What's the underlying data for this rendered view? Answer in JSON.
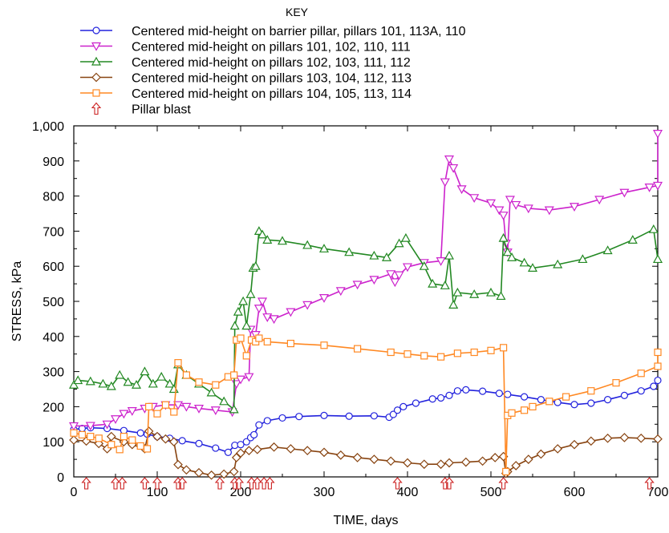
{
  "chart_data": {
    "type": "line",
    "title": "",
    "xlabel": "TIME, days",
    "ylabel": "STRESS, kPa",
    "xlim": [
      0,
      700
    ],
    "ylim": [
      0,
      1000
    ],
    "x_ticks": [
      0,
      100,
      200,
      300,
      400,
      500,
      600,
      700
    ],
    "x_tick_labels": [
      "0",
      "100",
      "200",
      "300",
      "400",
      "500",
      "600",
      "700"
    ],
    "y_ticks": [
      0,
      100,
      200,
      300,
      400,
      500,
      600,
      700,
      800,
      900,
      1000
    ],
    "y_tick_labels": [
      "0",
      "100",
      "200",
      "300",
      "400",
      "500",
      "600",
      "700",
      "800",
      "900",
      "1,000"
    ],
    "grid": false,
    "legend": {
      "title": "KEY",
      "placement": "top",
      "blast_label": "Pillar blast"
    },
    "series": [
      {
        "name": "Centered mid-height on barrier pillar, pillars 101, 113A, 110",
        "color": "#2222dd",
        "marker": "circle",
        "points": [
          [
            0,
            135
          ],
          [
            10,
            138
          ],
          [
            20,
            140
          ],
          [
            40,
            138
          ],
          [
            60,
            132
          ],
          [
            80,
            125
          ],
          [
            88,
            122
          ],
          [
            100,
            115
          ],
          [
            115,
            110
          ],
          [
            130,
            103
          ],
          [
            150,
            95
          ],
          [
            170,
            82
          ],
          [
            185,
            70
          ],
          [
            193,
            90
          ],
          [
            200,
            92
          ],
          [
            207,
            100
          ],
          [
            212,
            112
          ],
          [
            216,
            120
          ],
          [
            222,
            148
          ],
          [
            232,
            160
          ],
          [
            250,
            168
          ],
          [
            270,
            172
          ],
          [
            300,
            175
          ],
          [
            330,
            173
          ],
          [
            360,
            174
          ],
          [
            378,
            170
          ],
          [
            383,
            178
          ],
          [
            388,
            190
          ],
          [
            395,
            200
          ],
          [
            410,
            210
          ],
          [
            430,
            222
          ],
          [
            440,
            225
          ],
          [
            450,
            232
          ],
          [
            460,
            245
          ],
          [
            470,
            248
          ],
          [
            490,
            244
          ],
          [
            510,
            238
          ],
          [
            520,
            235
          ],
          [
            540,
            228
          ],
          [
            560,
            220
          ],
          [
            580,
            212
          ],
          [
            600,
            206
          ],
          [
            620,
            210
          ],
          [
            640,
            220
          ],
          [
            660,
            232
          ],
          [
            680,
            245
          ],
          [
            695,
            258
          ],
          [
            700,
            275
          ]
        ]
      },
      {
        "name": "Centered mid-height on pillars 101, 102, 110, 111",
        "color": "#cc22cc",
        "marker": "triangle-down",
        "points": [
          [
            0,
            145
          ],
          [
            20,
            146
          ],
          [
            40,
            150
          ],
          [
            50,
            165
          ],
          [
            60,
            180
          ],
          [
            70,
            188
          ],
          [
            85,
            195
          ],
          [
            95,
            200
          ],
          [
            110,
            205
          ],
          [
            125,
            205
          ],
          [
            135,
            200
          ],
          [
            150,
            195
          ],
          [
            170,
            190
          ],
          [
            190,
            185
          ],
          [
            195,
            265
          ],
          [
            200,
            278
          ],
          [
            210,
            285
          ],
          [
            212,
            420
          ],
          [
            218,
            405
          ],
          [
            222,
            480
          ],
          [
            226,
            500
          ],
          [
            232,
            455
          ],
          [
            240,
            450
          ],
          [
            260,
            470
          ],
          [
            280,
            490
          ],
          [
            300,
            510
          ],
          [
            320,
            530
          ],
          [
            340,
            548
          ],
          [
            360,
            562
          ],
          [
            380,
            578
          ],
          [
            385,
            555
          ],
          [
            390,
            575
          ],
          [
            400,
            598
          ],
          [
            420,
            610
          ],
          [
            440,
            615
          ],
          [
            445,
            840
          ],
          [
            450,
            905
          ],
          [
            455,
            880
          ],
          [
            465,
            820
          ],
          [
            480,
            795
          ],
          [
            500,
            780
          ],
          [
            510,
            760
          ],
          [
            515,
            745
          ],
          [
            518,
            665
          ],
          [
            520,
            640
          ],
          [
            523,
            790
          ],
          [
            530,
            775
          ],
          [
            545,
            765
          ],
          [
            570,
            760
          ],
          [
            600,
            770
          ],
          [
            630,
            790
          ],
          [
            660,
            810
          ],
          [
            690,
            825
          ],
          [
            700,
            830
          ],
          [
            700,
            978
          ]
        ]
      },
      {
        "name": "Centered mid-height on pillars 102, 103, 111, 112",
        "color": "#228822",
        "marker": "triangle-up",
        "points": [
          [
            0,
            262
          ],
          [
            5,
            275
          ],
          [
            20,
            272
          ],
          [
            35,
            265
          ],
          [
            45,
            258
          ],
          [
            55,
            290
          ],
          [
            65,
            270
          ],
          [
            75,
            262
          ],
          [
            85,
            300
          ],
          [
            95,
            265
          ],
          [
            105,
            285
          ],
          [
            115,
            265
          ],
          [
            120,
            250
          ],
          [
            125,
            320
          ],
          [
            135,
            290
          ],
          [
            150,
            265
          ],
          [
            165,
            240
          ],
          [
            180,
            215
          ],
          [
            192,
            192
          ],
          [
            193,
            430
          ],
          [
            197,
            470
          ],
          [
            203,
            500
          ],
          [
            207,
            430
          ],
          [
            212,
            520
          ],
          [
            215,
            595
          ],
          [
            218,
            600
          ],
          [
            222,
            700
          ],
          [
            226,
            690
          ],
          [
            232,
            675
          ],
          [
            250,
            672
          ],
          [
            280,
            660
          ],
          [
            300,
            650
          ],
          [
            330,
            640
          ],
          [
            360,
            630
          ],
          [
            375,
            625
          ],
          [
            390,
            665
          ],
          [
            398,
            680
          ],
          [
            420,
            600
          ],
          [
            430,
            550
          ],
          [
            445,
            545
          ],
          [
            450,
            630
          ],
          [
            455,
            490
          ],
          [
            460,
            525
          ],
          [
            480,
            520
          ],
          [
            500,
            525
          ],
          [
            512,
            515
          ],
          [
            515,
            680
          ],
          [
            520,
            640
          ],
          [
            525,
            625
          ],
          [
            540,
            610
          ],
          [
            550,
            595
          ],
          [
            580,
            605
          ],
          [
            610,
            620
          ],
          [
            640,
            645
          ],
          [
            670,
            675
          ],
          [
            695,
            705
          ],
          [
            700,
            620
          ]
        ]
      },
      {
        "name": "Centered mid-height on pillars 103, 104, 112, 113",
        "color": "#884411",
        "marker": "diamond",
        "points": [
          [
            0,
            105
          ],
          [
            15,
            102
          ],
          [
            30,
            95
          ],
          [
            40,
            80
          ],
          [
            45,
            115
          ],
          [
            60,
            100
          ],
          [
            70,
            92
          ],
          [
            85,
            80
          ],
          [
            90,
            130
          ],
          [
            100,
            115
          ],
          [
            110,
            108
          ],
          [
            120,
            100
          ],
          [
            125,
            35
          ],
          [
            135,
            20
          ],
          [
            150,
            12
          ],
          [
            165,
            5
          ],
          [
            180,
            8
          ],
          [
            192,
            15
          ],
          [
            195,
            55
          ],
          [
            200,
            68
          ],
          [
            210,
            75
          ],
          [
            220,
            78
          ],
          [
            240,
            85
          ],
          [
            260,
            80
          ],
          [
            280,
            75
          ],
          [
            300,
            70
          ],
          [
            320,
            62
          ],
          [
            340,
            55
          ],
          [
            360,
            50
          ],
          [
            380,
            45
          ],
          [
            400,
            40
          ],
          [
            420,
            36
          ],
          [
            440,
            36
          ],
          [
            450,
            40
          ],
          [
            470,
            42
          ],
          [
            490,
            45
          ],
          [
            505,
            55
          ],
          [
            515,
            58
          ],
          [
            518,
            10
          ],
          [
            520,
            15
          ],
          [
            530,
            32
          ],
          [
            545,
            50
          ],
          [
            560,
            65
          ],
          [
            580,
            80
          ],
          [
            600,
            92
          ],
          [
            620,
            102
          ],
          [
            640,
            110
          ],
          [
            660,
            112
          ],
          [
            680,
            110
          ],
          [
            700,
            108
          ]
        ]
      },
      {
        "name": "Centered mid-height on pillars 104, 105, 113, 114",
        "color": "#ff8822",
        "marker": "square",
        "points": [
          [
            0,
            125
          ],
          [
            10,
            120
          ],
          [
            20,
            115
          ],
          [
            30,
            110
          ],
          [
            45,
            92
          ],
          [
            55,
            78
          ],
          [
            60,
            115
          ],
          [
            70,
            105
          ],
          [
            80,
            88
          ],
          [
            88,
            80
          ],
          [
            90,
            200
          ],
          [
            100,
            180
          ],
          [
            110,
            205
          ],
          [
            120,
            185
          ],
          [
            125,
            325
          ],
          [
            135,
            290
          ],
          [
            150,
            270
          ],
          [
            170,
            262
          ],
          [
            185,
            285
          ],
          [
            192,
            290
          ],
          [
            195,
            390
          ],
          [
            200,
            395
          ],
          [
            207,
            345
          ],
          [
            213,
            390
          ],
          [
            218,
            385
          ],
          [
            222,
            395
          ],
          [
            232,
            385
          ],
          [
            260,
            380
          ],
          [
            300,
            375
          ],
          [
            340,
            365
          ],
          [
            380,
            355
          ],
          [
            400,
            350
          ],
          [
            420,
            345
          ],
          [
            440,
            342
          ],
          [
            460,
            352
          ],
          [
            480,
            355
          ],
          [
            500,
            360
          ],
          [
            515,
            368
          ],
          [
            518,
            15
          ],
          [
            520,
            175
          ],
          [
            525,
            182
          ],
          [
            540,
            190
          ],
          [
            550,
            200
          ],
          [
            570,
            215
          ],
          [
            590,
            228
          ],
          [
            620,
            245
          ],
          [
            650,
            268
          ],
          [
            680,
            295
          ],
          [
            700,
            315
          ],
          [
            700,
            355
          ]
        ]
      }
    ],
    "pillar_blasts_x": [
      15,
      50,
      58,
      85,
      100,
      125,
      130,
      175,
      193,
      198,
      213,
      220,
      228,
      235,
      388,
      445,
      450,
      515,
      690
    ]
  }
}
